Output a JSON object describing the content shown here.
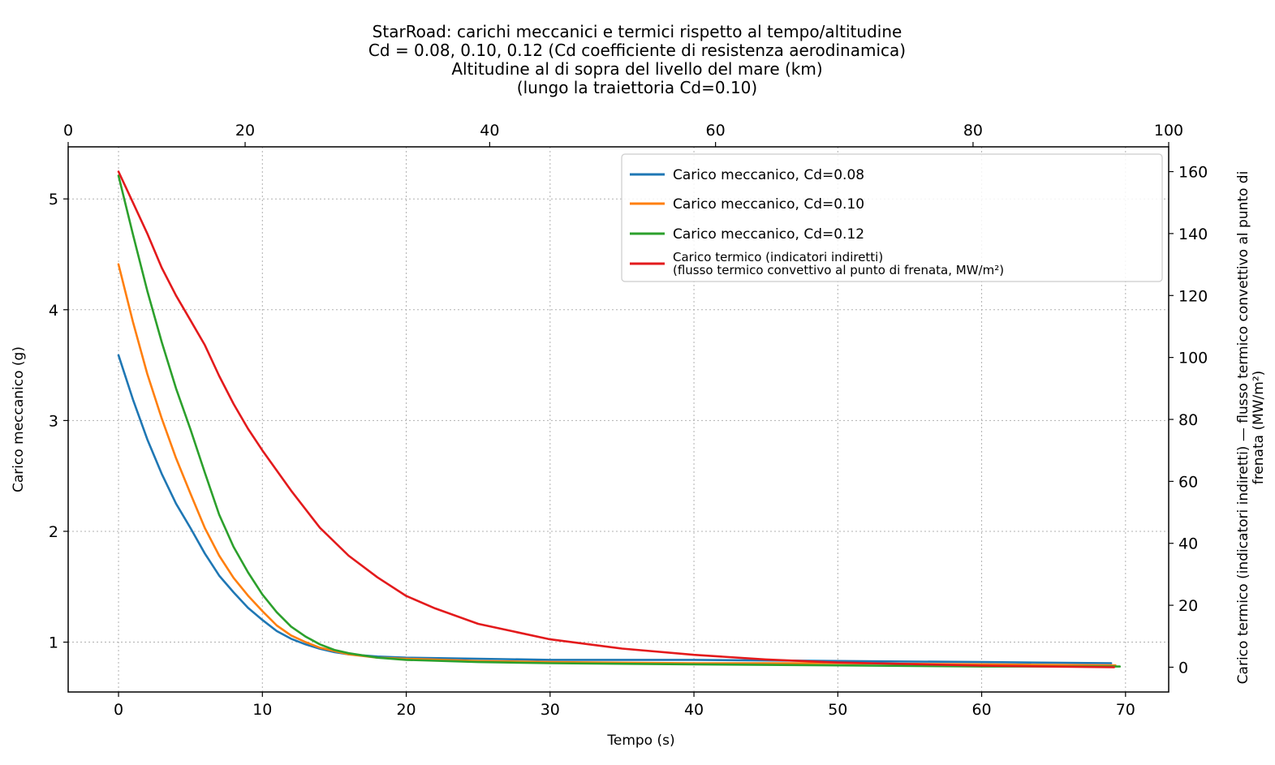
{
  "chart_data": {
    "type": "line",
    "title_lines": [
      "StarRoad: carichi meccanici e termici rispetto al tempo/altitudine",
      "Cd = 0.08, 0.10, 0.12 (Cd coefficiente di resistenza aerodinamica)",
      "Altitudine al di sopra del livello del mare (km)",
      "(lungo la traiettoria Cd=0.10)"
    ],
    "xlabel": "Tempo (s)",
    "ylabel": "Carico meccanico (g)",
    "y2label_lines": [
      "Carico termico (indicatori indiretti) — flusso termico convettivo al punto di",
      "frenata (MW/m²)"
    ],
    "xlim": [
      -3.5,
      73
    ],
    "ylim": [
      0.55,
      5.47
    ],
    "y2lim": [
      -8,
      168
    ],
    "toplim": [
      0,
      100
    ],
    "x_ticks": [
      0,
      10,
      20,
      30,
      40,
      50,
      60,
      70
    ],
    "y_ticks": [
      1,
      2,
      3,
      4,
      5
    ],
    "y2_ticks": [
      0,
      20,
      40,
      60,
      80,
      100,
      120,
      140,
      160
    ],
    "top_ticks": [
      0,
      20,
      40,
      60,
      80,
      100
    ],
    "top_tick_time": [
      -3.5,
      8.8,
      25.8,
      41.5,
      59.4,
      73
    ],
    "grid": true,
    "legend_position": "top-right",
    "series": [
      {
        "name": "Carico meccanico, Cd=0.08",
        "color": "#1f77b4",
        "axis": "left",
        "x": [
          0,
          1,
          2,
          3,
          4,
          5,
          6,
          7,
          8,
          9,
          10,
          11,
          12,
          13,
          14,
          15,
          16,
          18,
          20,
          25,
          30,
          40,
          50,
          60,
          69
        ],
        "y": [
          3.59,
          3.19,
          2.83,
          2.52,
          2.25,
          2.03,
          1.8,
          1.6,
          1.45,
          1.31,
          1.2,
          1.1,
          1.03,
          0.98,
          0.94,
          0.91,
          0.89,
          0.87,
          0.86,
          0.85,
          0.84,
          0.84,
          0.83,
          0.82,
          0.81
        ]
      },
      {
        "name": "Carico meccanico, Cd=0.10",
        "color": "#ff7f0e",
        "axis": "left",
        "x": [
          0,
          1,
          2,
          3,
          4,
          5,
          6,
          7,
          8,
          9,
          10,
          11,
          12,
          13,
          14,
          15,
          16,
          18,
          20,
          25,
          30,
          40,
          50,
          60,
          69.3
        ],
        "y": [
          4.41,
          3.89,
          3.42,
          3.02,
          2.66,
          2.34,
          2.03,
          1.78,
          1.58,
          1.42,
          1.28,
          1.15,
          1.06,
          1.0,
          0.95,
          0.92,
          0.89,
          0.86,
          0.85,
          0.83,
          0.82,
          0.81,
          0.81,
          0.8,
          0.79
        ]
      },
      {
        "name": "Carico meccanico, Cd=0.12",
        "color": "#2ca02c",
        "axis": "left",
        "x": [
          0,
          1,
          2,
          3,
          4,
          5,
          6,
          7,
          8,
          9,
          10,
          11,
          12,
          13,
          14,
          15,
          16,
          18,
          20,
          25,
          30,
          40,
          50,
          60,
          69.6
        ],
        "y": [
          5.21,
          4.68,
          4.17,
          3.71,
          3.29,
          2.92,
          2.53,
          2.15,
          1.86,
          1.63,
          1.43,
          1.27,
          1.14,
          1.05,
          0.98,
          0.93,
          0.9,
          0.86,
          0.84,
          0.82,
          0.81,
          0.8,
          0.79,
          0.78,
          0.78
        ]
      },
      {
        "name": "Carico termico (indicatori indiretti)",
        "name2": "(flusso termico convettivo al punto di frenata, MW/m²)",
        "color": "#e31a1c",
        "axis": "right",
        "x": [
          0,
          1,
          2,
          3,
          4,
          5,
          6,
          7,
          8,
          9,
          10,
          12,
          14,
          16,
          18,
          20,
          22,
          25,
          30,
          35,
          40,
          45,
          50,
          55,
          60,
          65,
          69.2
        ],
        "y": [
          160,
          150,
          140,
          129,
          120,
          112,
          104,
          94,
          85,
          77,
          70,
          57,
          45,
          36,
          29,
          23,
          19,
          14,
          9,
          6,
          4,
          2.5,
          1.5,
          1.0,
          0.5,
          0.2,
          0
        ]
      }
    ]
  }
}
